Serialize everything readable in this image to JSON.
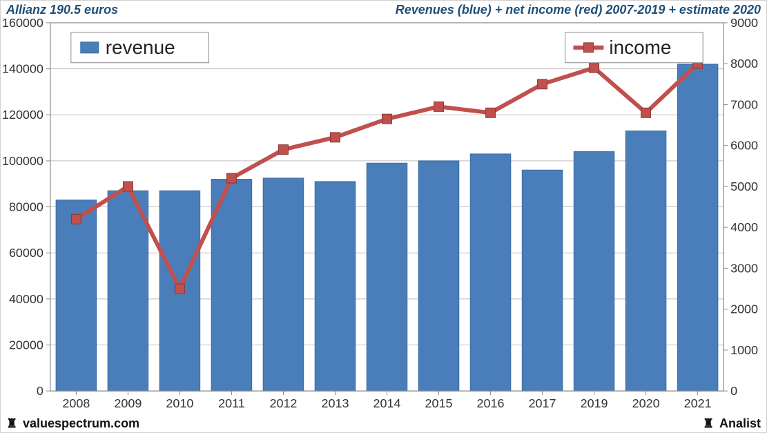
{
  "header": {
    "left": "Allianz 190.5 euros",
    "right": "Revenues (blue) + net income (red) 2007-2019 + estimate 2020"
  },
  "footer": {
    "left": "valuespectrum.com",
    "right": "Analist"
  },
  "chart": {
    "type": "bar+line",
    "categories": [
      "2008",
      "2009",
      "2010",
      "2011",
      "2012",
      "2013",
      "2014",
      "2015",
      "2016",
      "2017",
      "2019",
      "2020",
      "2021"
    ],
    "revenue_values": [
      83000,
      87000,
      87000,
      92000,
      92500,
      91000,
      99000,
      100000,
      103000,
      96000,
      104000,
      113000,
      142000
    ],
    "income_values": [
      4200,
      5000,
      2500,
      5200,
      5900,
      6200,
      6650,
      6950,
      6800,
      7500,
      7900,
      6800,
      8000
    ],
    "bar_color": "#4a7ebb",
    "bar_border": "#3b6aa0",
    "line_color": "#c0504d",
    "marker_color": "#c0504d",
    "marker_size": 14,
    "line_width": 6,
    "plot_border_color": "#888888",
    "grid_color": "#bfbfbf",
    "background_color": "#ffffff",
    "left_axis": {
      "min": 0,
      "max": 160000,
      "step": 20000
    },
    "right_axis": {
      "min": 0,
      "max": 9000,
      "step": 1000
    },
    "legend": {
      "revenue_label": "revenue",
      "income_label": "income"
    },
    "axis_fontsize": 18,
    "legend_fontsize": 28
  }
}
